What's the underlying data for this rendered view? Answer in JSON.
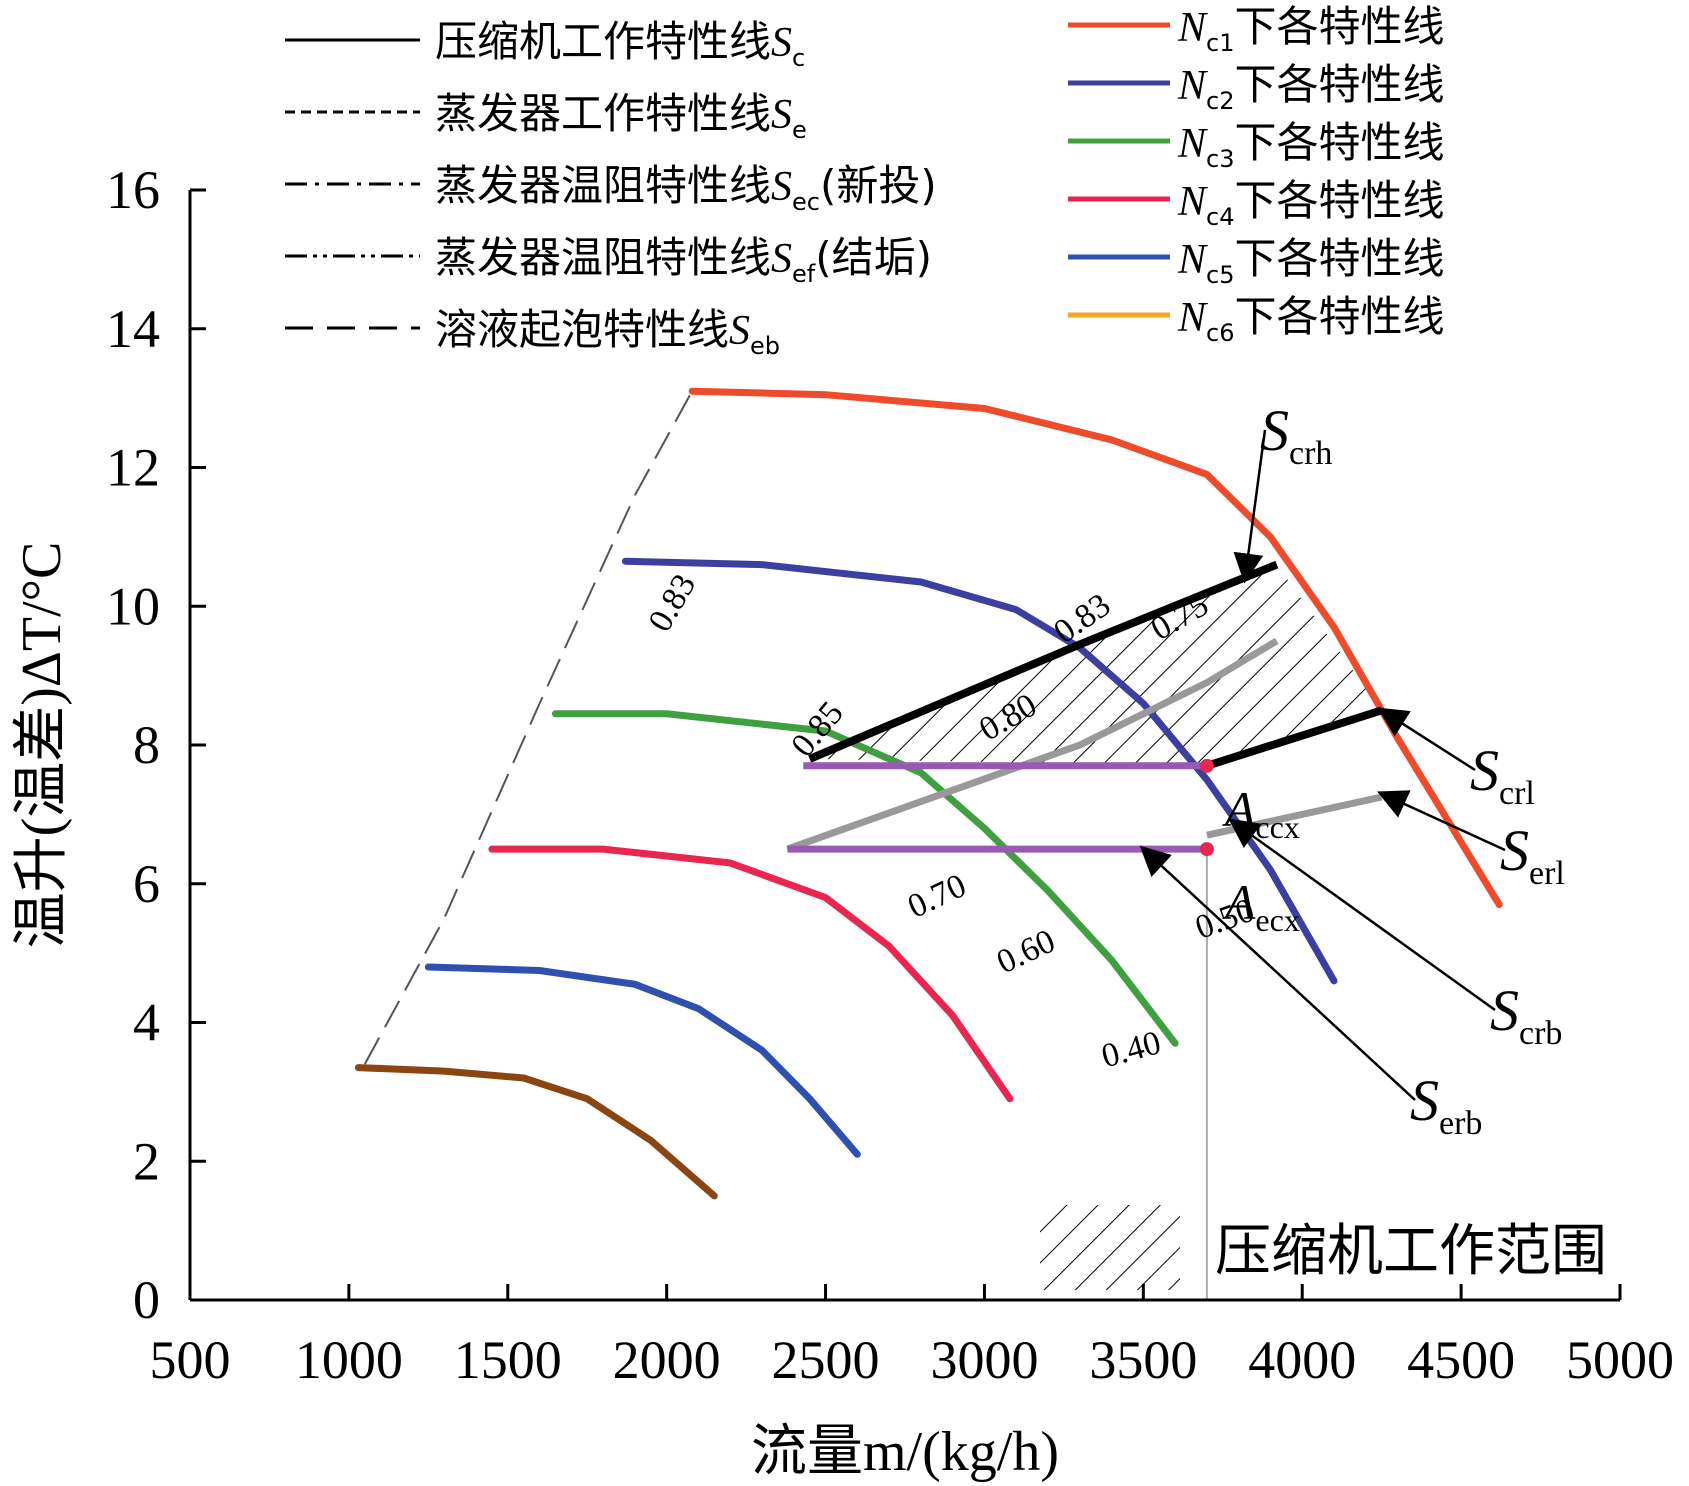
{
  "chart_data": {
    "type": "line",
    "title": "",
    "xlabel": "流量m/(kg/h)",
    "ylabel": "温升(温差)ΔT/°C",
    "xlim": [
      500,
      5000
    ],
    "ylim": [
      0,
      16
    ],
    "x_ticks": [
      "500",
      "1000",
      "1500",
      "2000",
      "2500",
      "3000",
      "3500",
      "4000",
      "4500",
      "5000"
    ],
    "y_ticks": [
      "0",
      "2",
      "4",
      "6",
      "8",
      "10",
      "12",
      "14",
      "16"
    ],
    "grid": false,
    "legend_style": [
      {
        "sym": "压缩机工作特性线",
        "sub": "c",
        "suffix": "",
        "dash": "solid"
      },
      {
        "sym": "蒸发器工作特性线",
        "sub": "e",
        "suffix": "",
        "dash": "dashed"
      },
      {
        "sym": "蒸发器温阻特性线",
        "sub": "ec",
        "suffix": "(新投)",
        "dash": "dashdot"
      },
      {
        "sym": "蒸发器温阻特性线",
        "sub": "ef",
        "suffix": "(结垢)",
        "dash": "dashdotdot"
      },
      {
        "sym": "溶液起泡特性线",
        "sub": "eb",
        "suffix": "",
        "dash": "longdash"
      }
    ],
    "legend_speed": [
      {
        "name": "N",
        "sub": "c1",
        "text": "下各特性线",
        "color": "#EE4B2B"
      },
      {
        "name": "N",
        "sub": "c2",
        "text": "下各特性线",
        "color": "#3B3FA0"
      },
      {
        "name": "N",
        "sub": "c3",
        "text": "下各特性线",
        "color": "#3FA03F"
      },
      {
        "name": "N",
        "sub": "c4",
        "text": "下各特性线",
        "color": "#E8264F"
      },
      {
        "name": "N",
        "sub": "c5",
        "text": "下各特性线",
        "color": "#3050B0"
      },
      {
        "name": "N",
        "sub": "c6",
        "text": "下各特性线",
        "color": "#F5A623"
      }
    ],
    "speed_lines": [
      {
        "name": "Nc1",
        "color": "#EE4B2B",
        "x": [
          2080,
          2500,
          3000,
          3400,
          3700,
          3900,
          4100,
          4300,
          4620
        ],
        "y": [
          13.1,
          13.05,
          12.85,
          12.4,
          11.9,
          11.0,
          9.7,
          8.1,
          5.7
        ]
      },
      {
        "name": "Nc2",
        "color": "#3B3FA0",
        "x": [
          1870,
          2300,
          2800,
          3100,
          3300,
          3500,
          3700,
          3900,
          4100
        ],
        "y": [
          10.65,
          10.6,
          10.35,
          9.95,
          9.4,
          8.6,
          7.5,
          6.2,
          4.6
        ]
      },
      {
        "name": "Nc3",
        "color": "#3FA03F",
        "x": [
          1650,
          2000,
          2500,
          2800,
          3000,
          3200,
          3400,
          3600
        ],
        "y": [
          8.45,
          8.45,
          8.2,
          7.6,
          6.8,
          5.9,
          4.9,
          3.7
        ]
      },
      {
        "name": "Nc4",
        "color": "#E8264F",
        "x": [
          1450,
          1800,
          2200,
          2500,
          2700,
          2900,
          3080
        ],
        "y": [
          6.5,
          6.5,
          6.3,
          5.8,
          5.1,
          4.1,
          2.9
        ]
      },
      {
        "name": "Nc5",
        "color": "#3050B0",
        "x": [
          1250,
          1600,
          1900,
          2100,
          2300,
          2450,
          2600
        ],
        "y": [
          4.8,
          4.75,
          4.55,
          4.2,
          3.6,
          2.9,
          2.1
        ]
      },
      {
        "name": "Nc6",
        "color": "#8B4513",
        "x": [
          1030,
          1300,
          1550,
          1750,
          1950,
          2150
        ],
        "y": [
          3.35,
          3.3,
          3.2,
          2.9,
          2.3,
          1.5
        ]
      }
    ],
    "surge_line": {
      "x": [
        1050,
        1300,
        1600,
        1900,
        2080
      ],
      "y": [
        3.4,
        5.5,
        8.6,
        11.6,
        13.1
      ]
    },
    "efficiency_labels": [
      {
        "text": "0.83",
        "x": 2000,
        "y": 9.6,
        "angle": -60
      },
      {
        "text": "0.83",
        "x": 3250,
        "y": 9.45,
        "angle": -35
      },
      {
        "text": "0.85",
        "x": 2440,
        "y": 7.8,
        "angle": -50
      },
      {
        "text": "0.80",
        "x": 3010,
        "y": 8.05,
        "angle": -30
      },
      {
        "text": "0.75",
        "x": 3550,
        "y": 9.5,
        "angle": -30
      },
      {
        "text": "0.70",
        "x": 2780,
        "y": 5.5,
        "angle": -25
      },
      {
        "text": "0.60",
        "x": 3060,
        "y": 4.7,
        "angle": -25
      },
      {
        "text": "0.50",
        "x": 3680,
        "y": 5.2,
        "angle": -20
      },
      {
        "text": "0.40",
        "x": 3380,
        "y": 3.35,
        "angle": -15
      }
    ],
    "S_crh": {
      "x": [
        2450,
        3300,
        3920
      ],
      "y": [
        7.8,
        9.45,
        10.6
      ]
    },
    "S_crl": {
      "x": [
        3700,
        4250
      ],
      "y": [
        7.7,
        8.5
      ]
    },
    "S_erl": {
      "x": [
        2380,
        3300,
        3700,
        3920
      ],
      "y": [
        6.5,
        8.0,
        8.9,
        9.5
      ]
    },
    "S_erb": {
      "x": [
        3700,
        4250
      ],
      "y": [
        6.7,
        7.25
      ]
    },
    "purple_lines": [
      {
        "x": [
          2430,
          3700
        ],
        "y": [
          7.7,
          7.7
        ]
      },
      {
        "x": [
          2380,
          3700
        ],
        "y": [
          6.5,
          6.5
        ]
      }
    ],
    "hatch_region": {
      "x": [
        2450,
        3920,
        4250,
        3700,
        2450
      ],
      "y": [
        7.8,
        10.6,
        8.5,
        7.7,
        7.8
      ]
    },
    "vertical_ref": {
      "x": 3700
    },
    "points": [
      {
        "name": "A_ccx",
        "x": 3700,
        "y": 7.7,
        "color": "#E8264F"
      },
      {
        "name": "A_ecx",
        "x": 3700,
        "y": 6.5,
        "color": "#E8264F"
      }
    ],
    "annotations": [
      {
        "sym": "S",
        "sub": "crh",
        "arrow_to": [
          3820,
          10.4
        ]
      },
      {
        "sym": "S",
        "sub": "crl",
        "arrow_to": [
          4250,
          8.5
        ]
      },
      {
        "sym": "S",
        "sub": "erl",
        "arrow_to": [
          4250,
          7.3
        ]
      },
      {
        "sym": "S",
        "sub": "crb",
        "arrow_to": [
          3780,
          6.9
        ]
      },
      {
        "sym": "S",
        "sub": "erb",
        "arrow_to": [
          3500,
          6.5
        ]
      }
    ],
    "point_labels": [
      {
        "sym": "A",
        "sub": "ccx"
      },
      {
        "sym": "A",
        "sub": "ecx"
      }
    ],
    "hatch_legend": "压缩机工作范围"
  }
}
